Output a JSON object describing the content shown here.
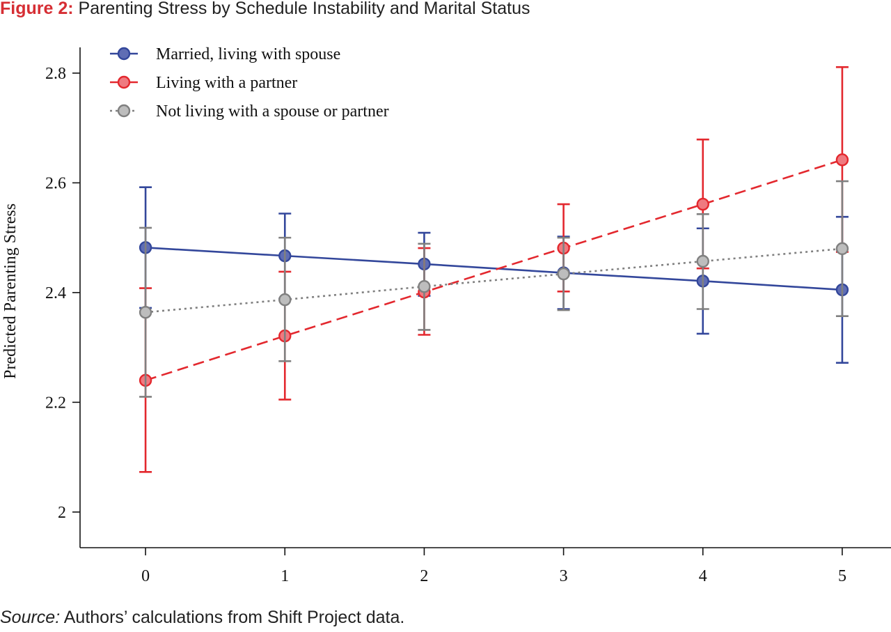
{
  "figure": {
    "label": "Figure 2:",
    "title": "Parenting Stress by Schedule Instability and Marital Status"
  },
  "source": {
    "label": "Source:",
    "text": "Authors’ calculations from Shift Project data."
  },
  "chart_data": {
    "type": "line",
    "title": "Parenting Stress by Schedule Instability and Marital Status",
    "xlabel": "",
    "ylabel": "Predicted Parenting Stress",
    "x": [
      0,
      1,
      2,
      3,
      4,
      5
    ],
    "x_tick_labels": [
      "0",
      "1",
      "2",
      "3",
      "4",
      "5"
    ],
    "y_ticks": [
      2,
      2.2,
      2.4,
      2.6,
      2.8
    ],
    "y_tick_labels": [
      "2",
      "2.2",
      "2.4",
      "2.6",
      "2.8"
    ],
    "ylim": [
      1.935,
      2.885
    ],
    "xlim": [
      -0.47,
      5.35
    ],
    "grid": false,
    "legend_position": "top-left",
    "series": [
      {
        "name": "Married, living with spouse",
        "color": "#33479b",
        "marker_fill": "#5f6db4",
        "line_style": "solid",
        "values": [
          2.482,
          2.467,
          2.452,
          2.436,
          2.421,
          2.405
        ],
        "ci_low": [
          2.372,
          2.389,
          2.394,
          2.37,
          2.325,
          2.272
        ],
        "ci_high": [
          2.592,
          2.544,
          2.509,
          2.502,
          2.517,
          2.538
        ]
      },
      {
        "name": "Living with a partner",
        "color": "#e3282e",
        "marker_fill": "#ef7a80",
        "line_style": "dashed",
        "values": [
          2.24,
          2.321,
          2.401,
          2.481,
          2.561,
          2.642
        ],
        "ci_low": [
          2.073,
          2.205,
          2.323,
          2.402,
          2.444,
          2.474
        ],
        "ci_high": [
          2.408,
          2.438,
          2.481,
          2.561,
          2.679,
          2.811
        ]
      },
      {
        "name": "Not living with a spouse or partner",
        "color": "#808080",
        "marker_fill": "#bdbdbd",
        "line_style": "dotted",
        "values": [
          2.364,
          2.387,
          2.411,
          2.434,
          2.457,
          2.48
        ],
        "ci_low": [
          2.21,
          2.275,
          2.332,
          2.368,
          2.37,
          2.357
        ],
        "ci_high": [
          2.518,
          2.5,
          2.489,
          2.5,
          2.543,
          2.603
        ]
      }
    ]
  }
}
